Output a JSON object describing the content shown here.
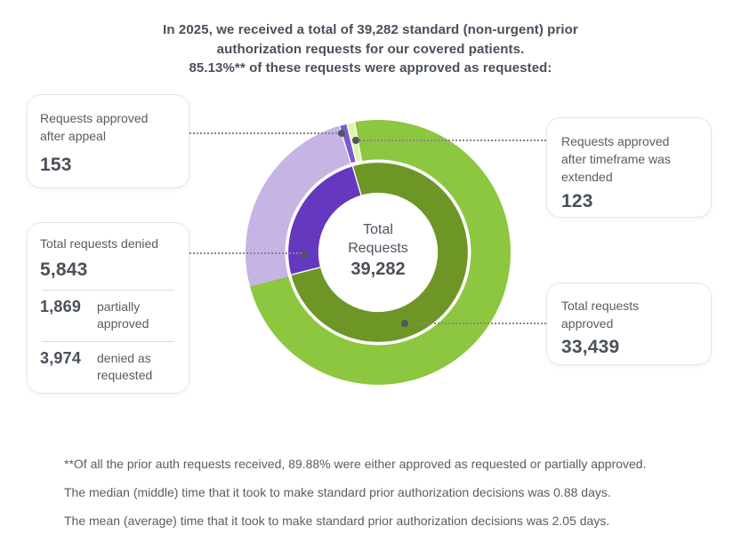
{
  "title": {
    "line1": "In 2025, we received a total of 39,282 standard (non-urgent) prior",
    "line2": "authorization requests for our covered patients.",
    "line3": "85.13%** of these requests were approved as requested:"
  },
  "donut_center": {
    "line1": "Total",
    "line2": "Requests",
    "value": "39,282"
  },
  "callouts": {
    "appeal": {
      "label": "Requests approved after appeal",
      "value": "153"
    },
    "timeframe": {
      "label": "Requests approved after timeframe was extended",
      "value": "123"
    },
    "denied": {
      "label": "Total requests denied",
      "value": "5,843",
      "breakdown": [
        {
          "value": "1,869",
          "label": "partially approved"
        },
        {
          "value": "3,974",
          "label": "denied as requested"
        }
      ]
    },
    "approved": {
      "label": "Total requests approved",
      "value": "33,439"
    }
  },
  "footnotes": [
    "**Of all the prior auth requests received, 89.88% were either approved as requested or partially approved.",
    "The median (middle) time that it took to make standard prior authorization decisions was 0.88 days.",
    "The mean (average) time that it took to make standard prior authorization decisions was 2.05 days."
  ],
  "colors": {
    "approved_outer": "#8dc63f",
    "approved_inner": "#6d9626",
    "denied_outer": "#c5b4e4",
    "denied_inner": "#6538c0",
    "appeal_sliver": "#7c5aca",
    "timeframe_sliver": "#dff2ae",
    "text_dark": "#49505a",
    "text_label": "#565c64"
  },
  "chart_data": {
    "type": "pie",
    "subtype": "double-ring-donut",
    "title": "In 2025, we received a total of 39,282 standard (non-urgent) prior authorization requests for our covered patients. 85.13%** of these requests were approved as requested:",
    "center_label": "Total Requests 39,282",
    "total": 39282,
    "approved_pct": 85.13,
    "approved_or_partial_pct": 89.88,
    "median_decision_days": 0.88,
    "mean_decision_days": 2.05,
    "slices": [
      {
        "label": "Total requests approved",
        "value": 33439,
        "color": "#8dc63f"
      },
      {
        "label": "Total requests denied",
        "value": 5843,
        "color": "#c5b4e4"
      },
      {
        "label": "Requests approved after appeal",
        "value": 153,
        "color": "#7c5aca"
      },
      {
        "label": "Requests approved after timeframe was extended",
        "value": 123,
        "color": "#dff2ae"
      },
      {
        "label": "partially approved (of denied)",
        "value": 1869
      },
      {
        "label": "denied as requested (of denied)",
        "value": 3974
      }
    ],
    "legend_position": "callout-boxes-with-dotted-connectors",
    "rings": [
      {
        "name": "outer",
        "r_inner": 104.5,
        "r_outer": 149,
        "segments": [
          {
            "name": "approved",
            "color": "#8dc63f",
            "start": 349.8,
            "end": 615,
            "stroke": "none"
          },
          {
            "name": "denied",
            "color": "#c5b4e4",
            "start": 255,
            "end": 343,
            "stroke": "none"
          },
          {
            "name": "appeal-sliver",
            "color": "#7c5aca",
            "start": 343,
            "end": 346.4,
            "stroke": "#ffffff"
          },
          {
            "name": "timeframe-sliver",
            "color": "#dff2ae",
            "start": 346.4,
            "end": 349.8,
            "stroke": "#ffffff"
          }
        ]
      },
      {
        "name": "inner",
        "r_inner": 66.5,
        "r_outer": 101.5,
        "segments": [
          {
            "name": "approved",
            "color": "#6d9626",
            "start": 343.5,
            "end": 615.5,
            "stroke": "#ffffff"
          },
          {
            "name": "denied",
            "color": "#6538c0",
            "start": 255.5,
            "end": 343.5,
            "stroke": "#ffffff"
          }
        ]
      }
    ]
  }
}
